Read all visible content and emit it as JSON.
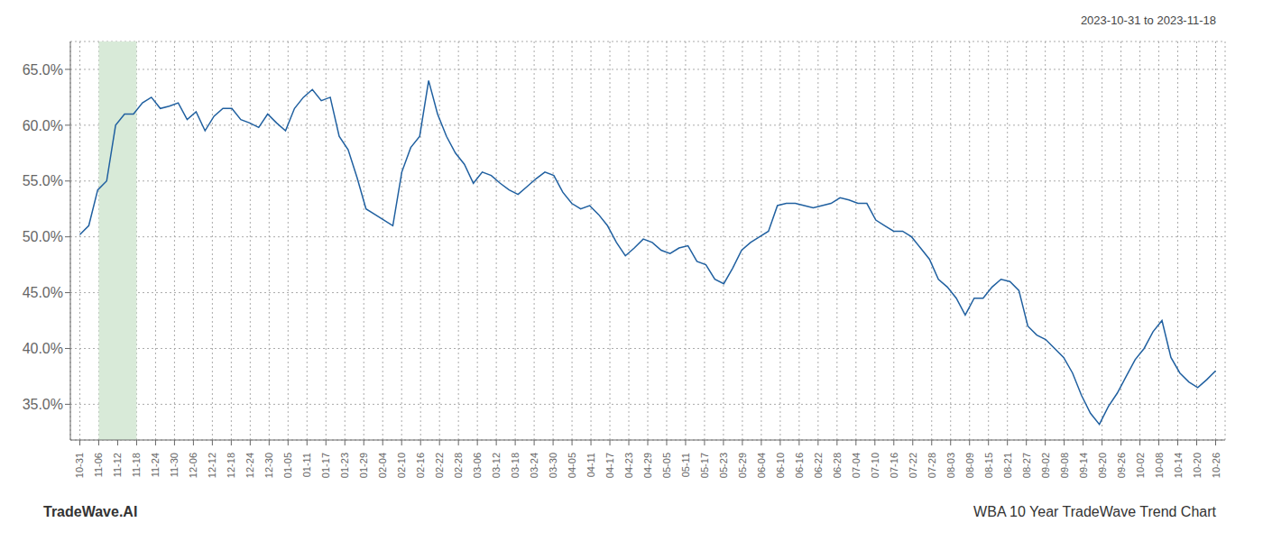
{
  "chart_data": {
    "type": "line",
    "title": "WBA 10 Year TradeWave Trend Chart",
    "subtitle": "2023-10-31 to 2023-11-18",
    "annotations": [
      "TradeWave.AI"
    ],
    "color": "#2060a0",
    "grid": true,
    "xlim": [
      -0.5,
      60.5
    ],
    "xticks": [
      {
        "value": 0,
        "label": "10-31"
      },
      {
        "value": 1,
        "label": "11-06"
      },
      {
        "value": 2,
        "label": "11-12"
      },
      {
        "value": 3,
        "label": "11-18"
      },
      {
        "value": 4,
        "label": "11-24"
      },
      {
        "value": 5,
        "label": "11-30"
      },
      {
        "value": 6,
        "label": "12-06"
      },
      {
        "value": 7,
        "label": "12-12"
      },
      {
        "value": 8,
        "label": "12-18"
      },
      {
        "value": 9,
        "label": "12-24"
      },
      {
        "value": 10,
        "label": "12-30"
      },
      {
        "value": 11,
        "label": "01-05"
      },
      {
        "value": 12,
        "label": "01-11"
      },
      {
        "value": 13,
        "label": "01-17"
      },
      {
        "value": 14,
        "label": "01-23"
      },
      {
        "value": 15,
        "label": "01-29"
      },
      {
        "value": 16,
        "label": "02-04"
      },
      {
        "value": 17,
        "label": "02-10"
      },
      {
        "value": 18,
        "label": "02-16"
      },
      {
        "value": 19,
        "label": "02-22"
      },
      {
        "value": 20,
        "label": "02-28"
      },
      {
        "value": 21,
        "label": "03-06"
      },
      {
        "value": 22,
        "label": "03-12"
      },
      {
        "value": 23,
        "label": "03-18"
      },
      {
        "value": 24,
        "label": "03-24"
      },
      {
        "value": 25,
        "label": "03-30"
      },
      {
        "value": 26,
        "label": "04-05"
      },
      {
        "value": 27,
        "label": "04-11"
      },
      {
        "value": 28,
        "label": "04-17"
      },
      {
        "value": 29,
        "label": "04-23"
      },
      {
        "value": 30,
        "label": "04-29"
      },
      {
        "value": 31,
        "label": "05-05"
      },
      {
        "value": 32,
        "label": "05-11"
      },
      {
        "value": 33,
        "label": "05-17"
      },
      {
        "value": 34,
        "label": "05-23"
      },
      {
        "value": 35,
        "label": "05-29"
      },
      {
        "value": 36,
        "label": "06-04"
      },
      {
        "value": 37,
        "label": "06-10"
      },
      {
        "value": 38,
        "label": "06-16"
      },
      {
        "value": 39,
        "label": "06-22"
      },
      {
        "value": 40,
        "label": "06-28"
      },
      {
        "value": 41,
        "label": "07-04"
      },
      {
        "value": 42,
        "label": "07-10"
      },
      {
        "value": 43,
        "label": "07-16"
      },
      {
        "value": 44,
        "label": "07-22"
      },
      {
        "value": 45,
        "label": "07-28"
      },
      {
        "value": 46,
        "label": "08-03"
      },
      {
        "value": 47,
        "label": "08-09"
      },
      {
        "value": 48,
        "label": "08-15"
      },
      {
        "value": 49,
        "label": "08-21"
      },
      {
        "value": 50,
        "label": "08-27"
      },
      {
        "value": 51,
        "label": "09-02"
      },
      {
        "value": 52,
        "label": "09-08"
      },
      {
        "value": 53,
        "label": "09-14"
      },
      {
        "value": 54,
        "label": "09-20"
      },
      {
        "value": 55,
        "label": "09-26"
      },
      {
        "value": 56,
        "label": "10-02"
      },
      {
        "value": 57,
        "label": "10-08"
      },
      {
        "value": 58,
        "label": "10-14"
      },
      {
        "value": 59,
        "label": "10-20"
      },
      {
        "value": 60,
        "label": "10-26"
      }
    ],
    "ylim": [
      0.318,
      0.675
    ],
    "yticks": [
      {
        "value": 0.35,
        "label": "35.0%"
      },
      {
        "value": 0.4,
        "label": "40.0%"
      },
      {
        "value": 0.45,
        "label": "45.0%"
      },
      {
        "value": 0.5,
        "label": "50.0%"
      },
      {
        "value": 0.55,
        "label": "55.0%"
      },
      {
        "value": 0.6,
        "label": "60.0%"
      },
      {
        "value": 0.65,
        "label": "65.0%"
      }
    ],
    "shade": {
      "start": "11-06",
      "end": "11-18",
      "color": "#d8ead8"
    },
    "values": [
      0.502,
      0.51,
      0.542,
      0.55,
      0.6,
      0.61,
      0.61,
      0.62,
      0.625,
      0.615,
      0.617,
      0.62,
      0.605,
      0.612,
      0.595,
      0.608,
      0.615,
      0.615,
      0.605,
      0.602,
      0.598,
      0.61,
      0.602,
      0.595,
      0.615,
      0.625,
      0.632,
      0.622,
      0.625,
      0.59,
      0.578,
      0.553,
      0.525,
      0.52,
      0.515,
      0.51,
      0.558,
      0.58,
      0.59,
      0.64,
      0.61,
      0.59,
      0.575,
      0.565,
      0.548,
      0.558,
      0.555,
      0.548,
      0.542,
      0.538,
      0.545,
      0.552,
      0.558,
      0.555,
      0.54,
      0.53,
      0.525,
      0.528,
      0.52,
      0.51,
      0.495,
      0.483,
      0.49,
      0.498,
      0.495,
      0.488,
      0.485,
      0.49,
      0.492,
      0.478,
      0.475,
      0.462,
      0.458,
      0.472,
      0.488,
      0.495,
      0.5,
      0.505,
      0.528,
      0.53,
      0.53,
      0.528,
      0.526,
      0.528,
      0.53,
      0.535,
      0.533,
      0.53,
      0.53,
      0.515,
      0.51,
      0.505,
      0.505,
      0.5,
      0.49,
      0.48,
      0.462,
      0.455,
      0.445,
      0.43,
      0.445,
      0.445,
      0.455,
      0.462,
      0.46,
      0.452,
      0.42,
      0.412,
      0.408,
      0.4,
      0.392,
      0.378,
      0.358,
      0.342,
      0.332,
      0.348,
      0.36,
      0.375,
      0.39,
      0.4,
      0.415,
      0.425,
      0.392,
      0.378,
      0.37,
      0.365,
      0.372,
      0.38
    ]
  }
}
